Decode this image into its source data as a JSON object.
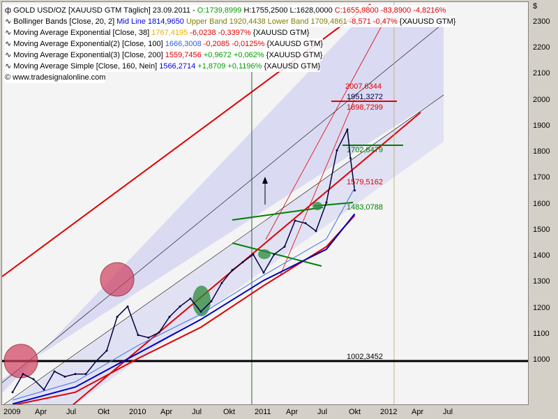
{
  "legend": {
    "l0": {
      "name": "GOLD USD/OZ [XAUUSD GTM  Täglich] 23.09.2011 -",
      "o": "O:1739,8999",
      "h": "H:1755,2500",
      "l": "L:1628,0000",
      "c": "C:1655,9800 -83,8900 -4,8216%"
    },
    "l1": {
      "name": "Bollinger Bands [Close, 20, 2]",
      "mid": "Mid Line 1814,9650",
      "up": "Upper Band 1920,4438",
      "low": "Lower Band 1709,4861",
      "chg": "-8,571 -0,47%",
      "sym": "{XAUUSD GTM}"
    },
    "l2": {
      "name": "Moving Average Exponential [Close, 38]",
      "val": "1767,4195",
      "chg": "-6,0238 -0,3397%",
      "sym": "{XAUUSD GTM}"
    },
    "l3": {
      "name": "Moving Average Exponential(2) [Close, 100]",
      "val": "1666,3008",
      "chg": "-0,2085 -0,0125%",
      "sym": "{XAUUSD GTM}"
    },
    "l4": {
      "name": "Moving Average Exponential(3) [Close, 200]",
      "val": "1559,7456",
      "chg": "+0,9672 +0,062%",
      "sym": "{XAUUSD GTM}"
    },
    "l5": {
      "name": "Moving Average Simple [Close, 160, Nein]",
      "val": "1566,2714",
      "chg": "+1,8709 +0,1196%",
      "sym": "{XAUUSD GTM}"
    },
    "copyright": "© www.tradesignalonline.com"
  },
  "annotations": {
    "a1": "2007,6344",
    "a2": "1951,3272",
    "a3": "1898,7299",
    "a4": "1702,8479",
    "a5": "1579,5162",
    "a6": "1483,0788",
    "a7": "1002,3452"
  },
  "currency": "$",
  "colors": {
    "price": "#000040",
    "mid": "#0000ff",
    "ema38": "#ffc000",
    "ema100": "#4070e0",
    "ema200": "#e00000",
    "sma160": "#0000c0"
  },
  "chart_data": {
    "type": "line",
    "title": "GOLD USD/OZ [XAUUSD GTM Täglich]",
    "ylim": [
      830,
      2340
    ],
    "y_ticks": [
      2300,
      2200,
      2100,
      2000,
      1900,
      1800,
      1700,
      1600,
      1500,
      1400,
      1300,
      1200,
      1100,
      1000
    ],
    "x_ticks": [
      "2009",
      "Apr",
      "Jul",
      "Okt",
      "2010",
      "Apr",
      "Jul",
      "Okt",
      "2011",
      "Apr",
      "Jul",
      "Okt",
      "2012",
      "Apr",
      "Jul"
    ],
    "x_unit": "months since Jan 2009",
    "series": [
      {
        "name": "GOLD close",
        "x": [
          0,
          1,
          2,
          3,
          4,
          5,
          6,
          7,
          8,
          9,
          10,
          11,
          12,
          13,
          14,
          15,
          16,
          17,
          18,
          19,
          20,
          21,
          22,
          23,
          24,
          25,
          26,
          27,
          28,
          29,
          30,
          31,
          32,
          32.3,
          32.7
        ],
        "values": [
          880,
          950,
          930,
          890,
          960,
          940,
          950,
          950,
          1000,
          1040,
          1170,
          1210,
          1100,
          1090,
          1110,
          1170,
          1210,
          1240,
          1190,
          1230,
          1300,
          1350,
          1380,
          1410,
          1340,
          1410,
          1440,
          1540,
          1530,
          1500,
          1610,
          1810,
          1890,
          1780,
          1656
        ]
      },
      {
        "name": "EMA 200",
        "x": [
          0,
          6,
          12,
          18,
          24,
          30,
          32.7
        ],
        "values": [
          830,
          880,
          1010,
          1130,
          1290,
          1440,
          1560
        ]
      },
      {
        "name": "SMA 160",
        "x": [
          0,
          6,
          12,
          18,
          24,
          30,
          32.7
        ],
        "values": [
          835,
          900,
          1030,
          1160,
          1310,
          1430,
          1566
        ]
      },
      {
        "name": "EMA 100",
        "x": [
          0,
          6,
          12,
          18,
          24,
          30,
          32.7
        ],
        "values": [
          850,
          920,
          1060,
          1180,
          1330,
          1470,
          1666
        ]
      }
    ]
  }
}
